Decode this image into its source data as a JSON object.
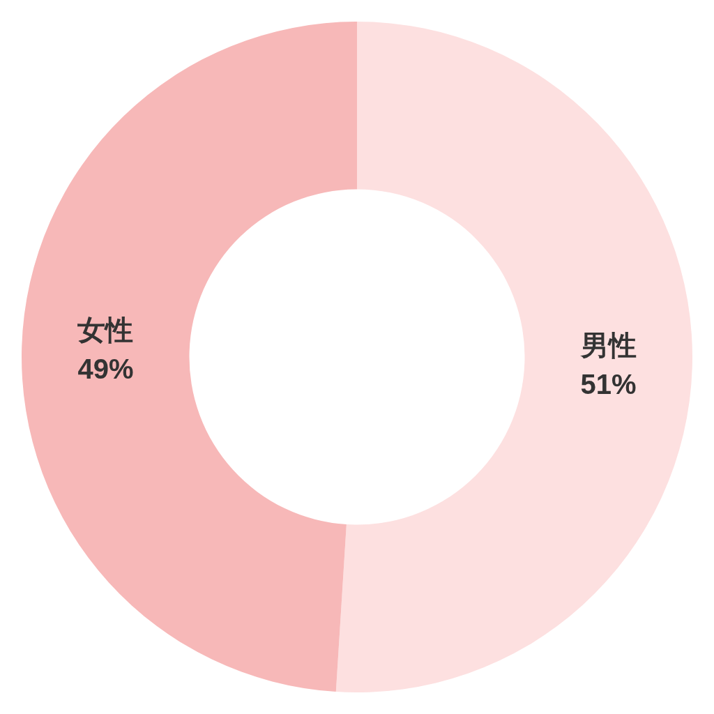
{
  "chart_data": {
    "type": "donut",
    "categories": [
      "男性",
      "女性"
    ],
    "values": [
      51,
      49
    ],
    "value_labels": [
      "51%",
      "49%"
    ],
    "colors": [
      "#fde0e0",
      "#f7b8b8"
    ],
    "legend": false
  }
}
